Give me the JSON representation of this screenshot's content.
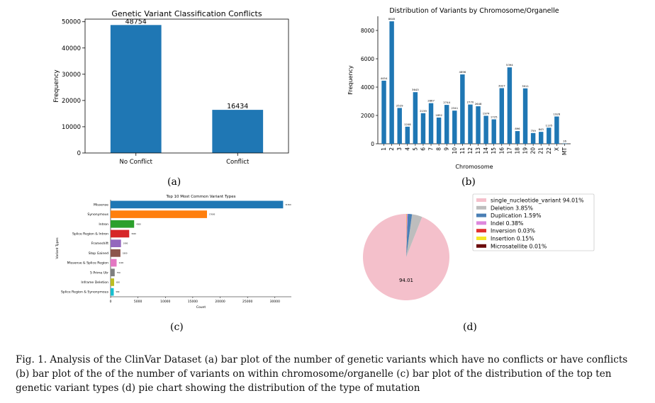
{
  "panel_labels": {
    "a": "(a)",
    "b": "(b)",
    "c": "(c)",
    "d": "(d)"
  },
  "caption": "Fig. 1.  Analysis of the ClinVar Dataset (a) bar plot of the number of genetic variants which have no conflicts or have conflicts (b) bar plot of the of the number of variants on within chromosome/organelle (c) bar plot of the distribution of the top ten genetic variant types (d) pie chart showing the distribution of the type of mutation",
  "chart_data": [
    {
      "id": "a",
      "type": "bar",
      "title": "Genetic Variant Classification Conflicts",
      "xlabel": "",
      "ylabel": "Frequency",
      "categories": [
        "No Conflict",
        "Conflict"
      ],
      "values": [
        48754,
        16434
      ],
      "data_labels": [
        "48754",
        "16434"
      ],
      "ylim": [
        0,
        51000
      ],
      "yticks": [
        0,
        10000,
        20000,
        30000,
        40000,
        50000
      ],
      "color": "#1f77b4"
    },
    {
      "id": "b",
      "type": "bar",
      "title": "Distribution of Variants by Chromosome/Organelle",
      "xlabel": "Chromosome",
      "ylabel": "Frequency",
      "categories": [
        "1",
        "2",
        "3",
        "4",
        "5",
        "6",
        "7",
        "8",
        "9",
        "10",
        "11",
        "12",
        "13",
        "14",
        "15",
        "16",
        "17",
        "18",
        "19",
        "20",
        "21",
        "22",
        "X",
        "MT"
      ],
      "values": [
        4454,
        8645,
        2529,
        1208,
        3643,
        2159,
        2867,
        1852,
        2744,
        2341,
        4896,
        2770,
        2648,
        1974,
        1725,
        3927,
        5394,
        896,
        3911,
        759,
        843,
        1135,
        1926,
        16
      ],
      "ylim": [
        0,
        9000
      ],
      "yticks": [
        0,
        2000,
        4000,
        6000,
        8000
      ],
      "color": "#1f77b4"
    },
    {
      "id": "c",
      "type": "bar",
      "orientation": "horizontal",
      "title": "Top 10 Most Common Variant Types",
      "xlabel": "Count",
      "ylabel": "Variant Types",
      "categories": [
        "Missense",
        "Synonymous",
        "Intron",
        "Splice Region & Intron",
        "Frameshift",
        "Stop Gained",
        "Missense & Splice Region",
        "5 Prime Utr",
        "Inframe Deletion",
        "Splice Region & Synonymous"
      ],
      "values": [
        31500,
        17600,
        4300,
        3400,
        1900,
        1800,
        1100,
        750,
        650,
        580
      ],
      "colors": [
        "#1f77b4",
        "#ff7f0e",
        "#2ca02c",
        "#d62728",
        "#9467bd",
        "#8c564b",
        "#e377c2",
        "#7f7f7f",
        "#bcbd22",
        "#17becf"
      ],
      "xlim": [
        0,
        33000
      ],
      "xticks": [
        0,
        5000,
        10000,
        15000,
        20000,
        25000,
        30000
      ]
    },
    {
      "id": "d",
      "type": "pie",
      "labels": [
        "single_nucleotide_variant",
        "Deletion",
        "Duplication",
        "Indel",
        "Inversion",
        "Insertion",
        "Microsatellite"
      ],
      "values": [
        94.01,
        3.85,
        1.59,
        0.38,
        0.03,
        0.15,
        0.01
      ],
      "legend_entries": [
        "single_nucleotide_variant 94.01%",
        "Deletion 3.85%",
        "Duplication 1.59%",
        "Indel 0.38%",
        "Inversion 0.03%",
        "Insertion 0.15%",
        "Microsatellite 0.01%"
      ],
      "slice_label": "94.01",
      "colors": [
        "#f4c0cb",
        "#bdbdbd",
        "#4a7fb5",
        "#dd88dd",
        "#e03030",
        "#f5e626",
        "#6b0b0b"
      ],
      "legend": "top-right"
    }
  ]
}
